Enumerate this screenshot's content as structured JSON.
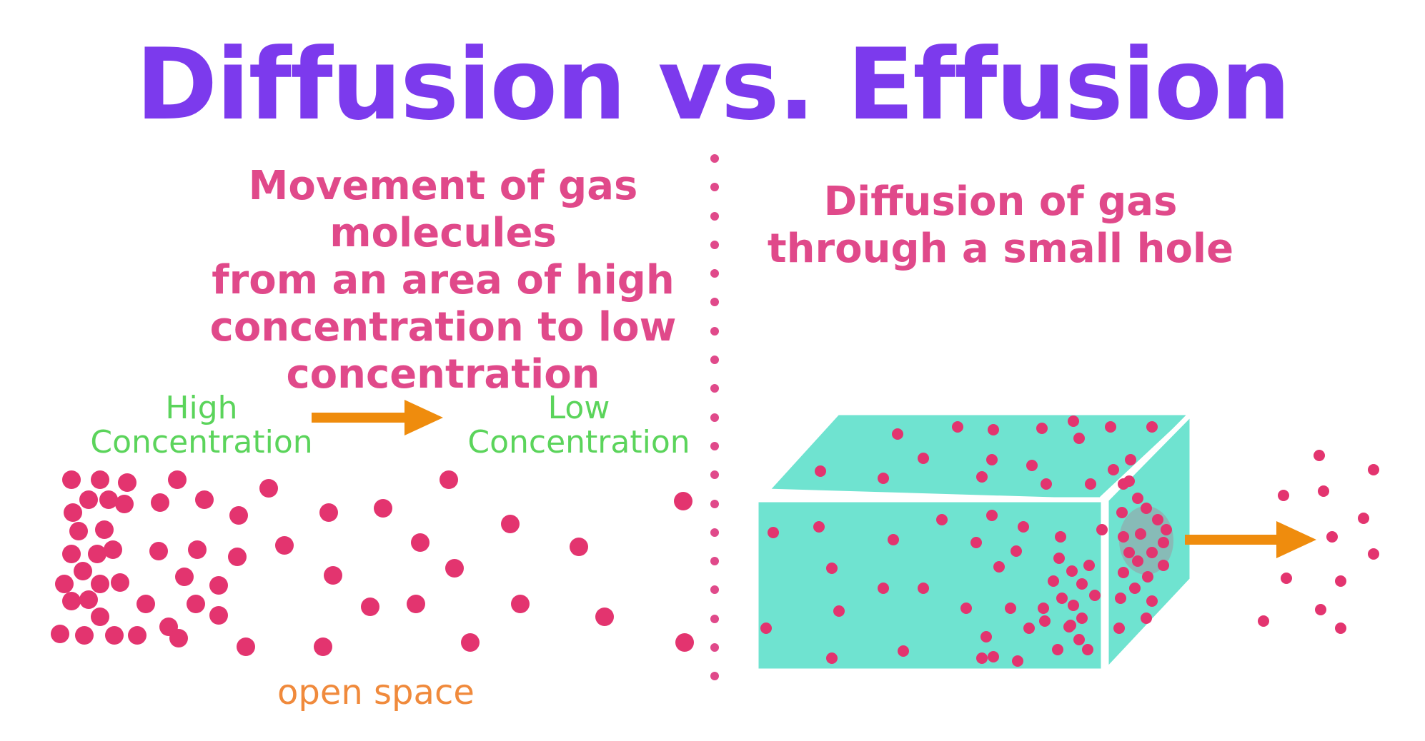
{
  "title": "Diffusion vs. Effusion",
  "colors": {
    "title": "#7c3aed",
    "description": "#e0498a",
    "label_green": "#5bd45b",
    "label_orange": "#f08a3c",
    "arrow": "#ef8c0d",
    "dot": "#e3346f",
    "box_fill": "#6fe3d0",
    "hole": "#9a9aa3",
    "divider": "#e0498a"
  },
  "diffusion": {
    "description": [
      "Movement of gas molecules",
      "from an area of high",
      "concentration to low",
      "concentration"
    ],
    "high_label": [
      "High",
      "Concentration"
    ],
    "low_label": [
      "Low",
      "Concentration"
    ],
    "space_label": "open space"
  },
  "effusion": {
    "description": [
      "Diffusion of gas",
      "through a small hole"
    ]
  }
}
